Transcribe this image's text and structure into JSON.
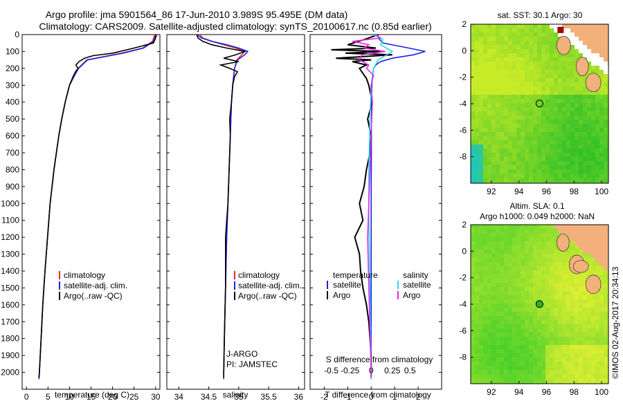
{
  "header": {
    "title_line1": "Argo profile: jma 5901564_86 17-Jun-2010 3.989S 95.495E (DM data)",
    "title_line2": "Climatology: CARS2009. Satellite-adjusted climatology: synTS_20100617.nc (0.85d earlier)"
  },
  "timestamp": "©IMOS 02-Aug-2017 20:34:13",
  "colors": {
    "climatology": "#e8281e",
    "satellite": "#1a22e8",
    "argo": "#000000",
    "argo_s": "#e628e6",
    "sat_s": "#28d8e8"
  },
  "chart_data": [
    {
      "type": "line",
      "id": "temperature",
      "xlabel": "temperature (deg C)",
      "ylabel": "",
      "xlim": [
        -1,
        31
      ],
      "ylim": [
        2100,
        0
      ],
      "xticks": [
        0,
        5,
        10,
        15,
        20,
        25,
        30
      ],
      "yticks": [
        0,
        100,
        200,
        300,
        400,
        500,
        600,
        700,
        800,
        900,
        1000,
        1100,
        1200,
        1300,
        1400,
        1500,
        1600,
        1700,
        1800,
        1900,
        2000
      ],
      "legend": [
        "climatology",
        "satellite-adj. clim.",
        "Argo(..raw -QC)"
      ],
      "series": [
        {
          "name": "climatology",
          "depth": [
            0,
            40,
            80,
            110,
            150,
            200,
            250,
            300,
            400,
            500,
            600,
            800,
            1000,
            1200,
            1400,
            1600,
            1800,
            2000,
            2040
          ],
          "values": [
            29.8,
            29.3,
            27.0,
            22.0,
            14.0,
            12.0,
            11.0,
            10.0,
            9.0,
            8.2,
            7.5,
            6.4,
            5.5,
            4.9,
            4.3,
            3.8,
            3.4,
            3.0,
            2.9
          ]
        },
        {
          "name": "satellite-adj. clim.",
          "depth": [
            0,
            40,
            80,
            110,
            150,
            200,
            250,
            300,
            400,
            500,
            600,
            800,
            1000,
            1200,
            1400,
            1600,
            1800,
            2000,
            2040
          ],
          "values": [
            30.1,
            29.5,
            27.2,
            22.5,
            14.2,
            12.1,
            11.0,
            10.0,
            9.0,
            8.2,
            7.5,
            6.4,
            5.5,
            4.9,
            4.3,
            3.8,
            3.4,
            3.0,
            2.9
          ]
        },
        {
          "name": "Argo(..raw -QC)",
          "depth": [
            0,
            20,
            50,
            80,
            110,
            125,
            140,
            160,
            180,
            200,
            220,
            250,
            300,
            400,
            500,
            600,
            800,
            1000,
            1200,
            1400,
            1600,
            1800,
            2000,
            2030
          ],
          "values": [
            30.2,
            30.0,
            29.5,
            25.0,
            20.0,
            15.5,
            13.5,
            12.2,
            11.5,
            12.0,
            11.4,
            10.8,
            10.0,
            9.0,
            8.2,
            7.5,
            6.4,
            5.5,
            4.9,
            4.3,
            3.8,
            3.4,
            3.0,
            2.9
          ]
        }
      ]
    },
    {
      "type": "line",
      "id": "salinity",
      "xlabel": "salinity",
      "xlim": [
        33.8,
        36.1
      ],
      "ylim": [
        2100,
        0
      ],
      "xticks": [
        34,
        34.5,
        35,
        35.5,
        36
      ],
      "legend": [
        "climatology",
        "satellite-adj. clim.",
        "Argo(..raw -QC)"
      ],
      "annotation": [
        "J-ARGO",
        "PI: JAMSTEC"
      ],
      "series": [
        {
          "name": "climatology",
          "depth": [
            0,
            20,
            40,
            60,
            80,
            100,
            120,
            150,
            200,
            300,
            400,
            600,
            800,
            1000,
            1200,
            1500,
            1800,
            2000,
            2040
          ],
          "values": [
            34.35,
            34.4,
            34.55,
            34.75,
            34.95,
            35.1,
            35.05,
            34.97,
            34.93,
            34.9,
            34.88,
            34.86,
            34.84,
            34.82,
            34.8,
            34.78,
            34.76,
            34.75,
            34.75
          ]
        },
        {
          "name": "satellite-adj. clim.",
          "depth": [
            0,
            20,
            40,
            60,
            80,
            100,
            120,
            150,
            200,
            300,
            400,
            600,
            800,
            1000,
            1200,
            1500,
            1800,
            2000,
            2040
          ],
          "values": [
            34.3,
            34.38,
            34.55,
            34.8,
            35.0,
            35.15,
            35.1,
            34.98,
            34.93,
            34.9,
            34.88,
            34.86,
            34.84,
            34.82,
            34.8,
            34.78,
            34.76,
            34.75,
            34.75
          ]
        },
        {
          "name": "Argo(..raw -QC)",
          "depth": [
            0,
            20,
            40,
            60,
            80,
            100,
            120,
            140,
            160,
            180,
            200,
            220,
            250,
            300,
            400,
            500,
            600,
            800,
            1000,
            1100,
            1200,
            1500,
            1800,
            2000,
            2030
          ],
          "values": [
            34.3,
            34.32,
            34.4,
            34.55,
            34.8,
            35.1,
            34.95,
            34.75,
            35.0,
            34.7,
            34.85,
            34.98,
            34.93,
            34.9,
            34.88,
            34.85,
            34.86,
            34.84,
            34.82,
            34.8,
            34.78,
            34.78,
            34.76,
            34.75,
            34.75
          ]
        }
      ]
    },
    {
      "type": "line",
      "id": "difference",
      "xlabel_top": "S difference from climatology",
      "xlabel": "T difference from climatology",
      "xlim": [
        -2.6,
        3.0
      ],
      "ylim": [
        2100,
        0
      ],
      "xticks_bottom": [
        -2,
        -1,
        0,
        1,
        2
      ],
      "xticks_top": [
        {
          "label": "-0.5",
          "t": -1.7
        },
        {
          "label": "-0.25",
          "t": -0.9
        },
        {
          "label": "0",
          "t": 0
        },
        {
          "label": "0.25",
          "t": 0.9
        },
        {
          "label": "0.5",
          "t": 1.65
        }
      ],
      "legend_temperature": [
        "temperature",
        "satellite",
        "Argo"
      ],
      "legend_salinity": [
        "salinity",
        "satellite",
        "Argo"
      ],
      "series": [
        {
          "name": "temperature satellite",
          "depth": [
            0,
            20,
            50,
            80,
            100,
            120,
            140,
            160,
            180,
            200,
            250,
            300,
            400,
            600,
            1000,
            2000,
            2040
          ],
          "values": [
            0.3,
            0.3,
            0.5,
            1.6,
            2.3,
            1.8,
            0.9,
            0.4,
            0.2,
            0.1,
            0.05,
            0.03,
            0.02,
            0.01,
            0,
            0,
            0
          ]
        },
        {
          "name": "temperature Argo",
          "depth": [
            0,
            30,
            60,
            80,
            90,
            100,
            110,
            120,
            140,
            150,
            160,
            180,
            200,
            220,
            260,
            300,
            400,
            500,
            600,
            700,
            800,
            900,
            1000,
            1100,
            1200,
            1300,
            1400,
            1500,
            1600,
            1700,
            1800,
            1900,
            2000,
            2030
          ],
          "values": [
            0.3,
            -0.3,
            -1.0,
            0.2,
            -1.7,
            0.4,
            -1.1,
            0.9,
            -1.5,
            0.0,
            -0.8,
            -0.2,
            -0.5,
            -0.4,
            -0.2,
            -0.1,
            0.05,
            -0.15,
            0.0,
            -0.05,
            -0.2,
            -0.3,
            -0.5,
            -0.35,
            -0.7,
            -0.5,
            -0.45,
            -0.35,
            -0.2,
            -0.1,
            -0.05,
            0,
            0,
            0
          ]
        },
        {
          "name": "salinity satellite",
          "depth": [
            0,
            30,
            60,
            100,
            150,
            200,
            300,
            500,
            800,
            1100,
            1500,
            2000,
            2040
          ],
          "values": [
            0.1,
            0.5,
            0.4,
            0.9,
            0.3,
            0.1,
            0.0,
            -0.05,
            -0.1,
            -0.1,
            -0.05,
            0,
            0
          ]
        },
        {
          "name": "salinity Argo",
          "depth": [
            0,
            20,
            40,
            60,
            80,
            100,
            120,
            150,
            180,
            200,
            240,
            300,
            400,
            600,
            800,
            1000,
            1200,
            1500,
            2000,
            2030
          ],
          "values": [
            0.2,
            0.4,
            -0.8,
            -0.1,
            -0.3,
            0.6,
            -0.4,
            -0.5,
            -0.1,
            -0.2,
            0.1,
            0.0,
            0.05,
            0.0,
            -0.05,
            -0.1,
            -0.15,
            -0.1,
            0,
            0
          ]
        }
      ]
    },
    {
      "type": "heatmap",
      "id": "sst_map",
      "title": "sat. SST: 30.1  Argo: 30",
      "xlim": [
        90.5,
        100.5
      ],
      "ylim": [
        -10,
        2
      ],
      "xticks": [
        92,
        94,
        96,
        98,
        100
      ],
      "yticks": [
        2,
        0,
        -2,
        -4,
        -6,
        -8
      ],
      "argo_point": {
        "lon": 95.495,
        "lat": -3.989
      }
    },
    {
      "type": "heatmap",
      "id": "sla_map",
      "title": "Altim. SLA: 0.1",
      "subtitle": "Argo h1000: 0.049 h2000: NaN",
      "xlim": [
        90.5,
        100.5
      ],
      "ylim": [
        -10,
        2
      ],
      "xticks": [
        92,
        94,
        96,
        98,
        100
      ],
      "yticks": [
        2,
        0,
        -2,
        -4,
        -6,
        -8
      ],
      "argo_point": {
        "lon": 95.495,
        "lat": -3.989
      }
    }
  ]
}
